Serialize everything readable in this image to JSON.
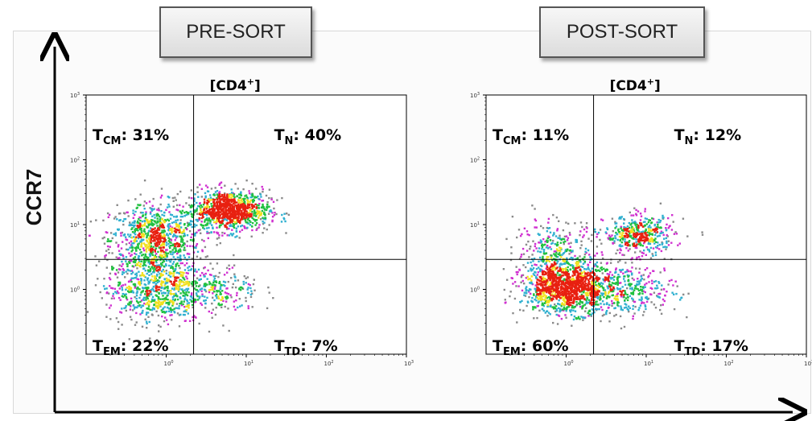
{
  "labels": {
    "pre": "PRE-SORT",
    "post": "POST-SORT",
    "ylabel": "CCR7"
  },
  "chart_data": [
    {
      "type": "scatter",
      "title": "PRE-SORT",
      "gate": "[CD4+]",
      "ylabel": "CCR7",
      "xscale": "log",
      "yscale": "log",
      "xlim": [
        0.1,
        1000
      ],
      "ylim": [
        0.1,
        1000
      ],
      "x_ticks": [
        "10^0",
        "10^1",
        "10^2",
        "10^3"
      ],
      "y_ticks": [
        "10^0",
        "10^1",
        "10^2",
        "10^3"
      ],
      "quadrant_gate": {
        "x": 2.2,
        "y": 2.9
      },
      "quadrants": [
        {
          "name": "TCM",
          "sub": "CM",
          "value": "31%"
        },
        {
          "name": "TN",
          "sub": "N",
          "value": "40%"
        },
        {
          "name": "TEM",
          "sub": "EM",
          "value": "22%"
        },
        {
          "name": "TTD",
          "sub": "TD",
          "value": "7%"
        }
      ],
      "populations": [
        {
          "cx": 0.7,
          "cy": 6,
          "spread_x": 0.28,
          "spread_y": 0.28,
          "n": 900
        },
        {
          "cx": 6,
          "cy": 17,
          "spread_x": 0.25,
          "spread_y": 0.16,
          "n": 1000
        },
        {
          "cx": 0.7,
          "cy": 1.0,
          "spread_x": 0.3,
          "spread_y": 0.25,
          "n": 700
        },
        {
          "cx": 4,
          "cy": 1.0,
          "spread_x": 0.28,
          "spread_y": 0.2,
          "n": 250
        }
      ],
      "grid": false
    },
    {
      "type": "scatter",
      "title": "POST-SORT",
      "gate": "[CD4+]",
      "ylabel": "CCR7",
      "xscale": "log",
      "yscale": "log",
      "xlim": [
        0.1,
        1000
      ],
      "ylim": [
        0.1,
        1000
      ],
      "x_ticks": [
        "10^0",
        "10^1",
        "10^2",
        "10^3"
      ],
      "y_ticks": [
        "10^0",
        "10^1",
        "10^2",
        "10^3"
      ],
      "quadrant_gate": {
        "x": 2.2,
        "y": 2.9
      },
      "quadrants": [
        {
          "name": "TCM",
          "sub": "CM",
          "value": "11%"
        },
        {
          "name": "TN",
          "sub": "N",
          "value": "12%"
        },
        {
          "name": "TEM",
          "sub": "EM",
          "value": "60%"
        },
        {
          "name": "TTD",
          "sub": "TD",
          "value": "17%"
        }
      ],
      "populations": [
        {
          "cx": 1.0,
          "cy": 1.1,
          "spread_x": 0.28,
          "spread_y": 0.2,
          "n": 1300
        },
        {
          "cx": 0.7,
          "cy": 4,
          "spread_x": 0.25,
          "spread_y": 0.25,
          "n": 300
        },
        {
          "cx": 8,
          "cy": 7,
          "spread_x": 0.22,
          "spread_y": 0.15,
          "n": 450
        },
        {
          "cx": 6,
          "cy": 1.0,
          "spread_x": 0.3,
          "spread_y": 0.2,
          "n": 350
        }
      ],
      "grid": false
    }
  ]
}
